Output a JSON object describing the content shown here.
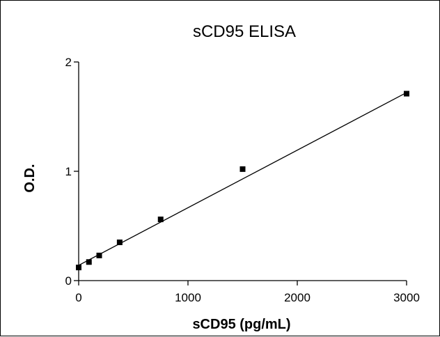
{
  "chart_data": {
    "type": "scatter",
    "title": "sCD95 ELISA",
    "xlabel": "sCD95 (pg/mL)",
    "ylabel": "O.D.",
    "xlim": [
      0,
      3000
    ],
    "ylim": [
      0,
      2
    ],
    "x_ticks": [
      0,
      1000,
      2000,
      3000
    ],
    "y_ticks": [
      0,
      1,
      2
    ],
    "x_tick_labels": [
      "0",
      "1000",
      "2000",
      "3000"
    ],
    "y_tick_labels": [
      "0",
      "1",
      "2"
    ],
    "series": [
      {
        "x": [
          0,
          94,
          188,
          375,
          750,
          1500,
          3000
        ],
        "y": [
          0.12,
          0.17,
          0.23,
          0.35,
          0.56,
          1.02,
          1.71
        ]
      }
    ],
    "fit_line": {
      "x": [
        0,
        3000
      ],
      "y": [
        0.14,
        1.72
      ]
    },
    "grid": false,
    "legend": "none"
  }
}
